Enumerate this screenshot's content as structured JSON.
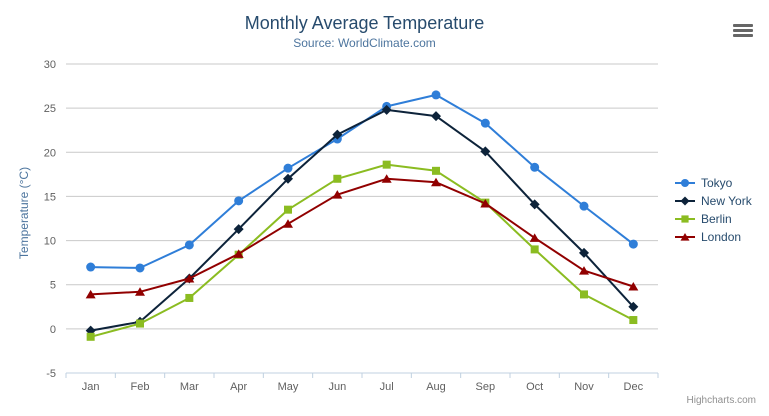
{
  "chart_data": {
    "type": "line",
    "title": "Monthly Average Temperature",
    "subtitle": "Source: WorldClimate.com",
    "xlabel": "",
    "ylabel": "Temperature (°C)",
    "categories": [
      "Jan",
      "Feb",
      "Mar",
      "Apr",
      "May",
      "Jun",
      "Jul",
      "Aug",
      "Sep",
      "Oct",
      "Nov",
      "Dec"
    ],
    "ylim": [
      -5,
      30
    ],
    "y_ticks": [
      -5,
      0,
      5,
      10,
      15,
      20,
      25,
      30
    ],
    "grid": true,
    "legend_position": "right",
    "series": [
      {
        "name": "Tokyo",
        "color": "#2f7ed8",
        "marker": "circle",
        "values": [
          7.0,
          6.9,
          9.5,
          14.5,
          18.2,
          21.5,
          25.2,
          26.5,
          23.3,
          18.3,
          13.9,
          9.6
        ]
      },
      {
        "name": "New York",
        "color": "#0d233a",
        "marker": "diamond",
        "values": [
          -0.2,
          0.8,
          5.7,
          11.3,
          17.0,
          22.0,
          24.8,
          24.1,
          20.1,
          14.1,
          8.6,
          2.5
        ]
      },
      {
        "name": "Berlin",
        "color": "#8bbc21",
        "marker": "square",
        "values": [
          -0.9,
          0.6,
          3.5,
          8.4,
          13.5,
          17.0,
          18.6,
          17.9,
          14.3,
          9.0,
          3.9,
          1.0
        ]
      },
      {
        "name": "London",
        "color": "#910000",
        "marker": "triangle",
        "values": [
          3.9,
          4.2,
          5.7,
          8.5,
          11.9,
          15.2,
          17.0,
          16.6,
          14.2,
          10.3,
          6.6,
          4.8
        ]
      }
    ],
    "colors": {
      "grid_line": "#c9c9c9",
      "axis_line": "#c0d0e0",
      "axis_label": "#606060",
      "title": "#274b6d",
      "subtitle": "#4d759e"
    }
  },
  "credits": {
    "label": "Highcharts.com"
  },
  "toolbar": {
    "menu_icon": "hamburger-icon"
  }
}
